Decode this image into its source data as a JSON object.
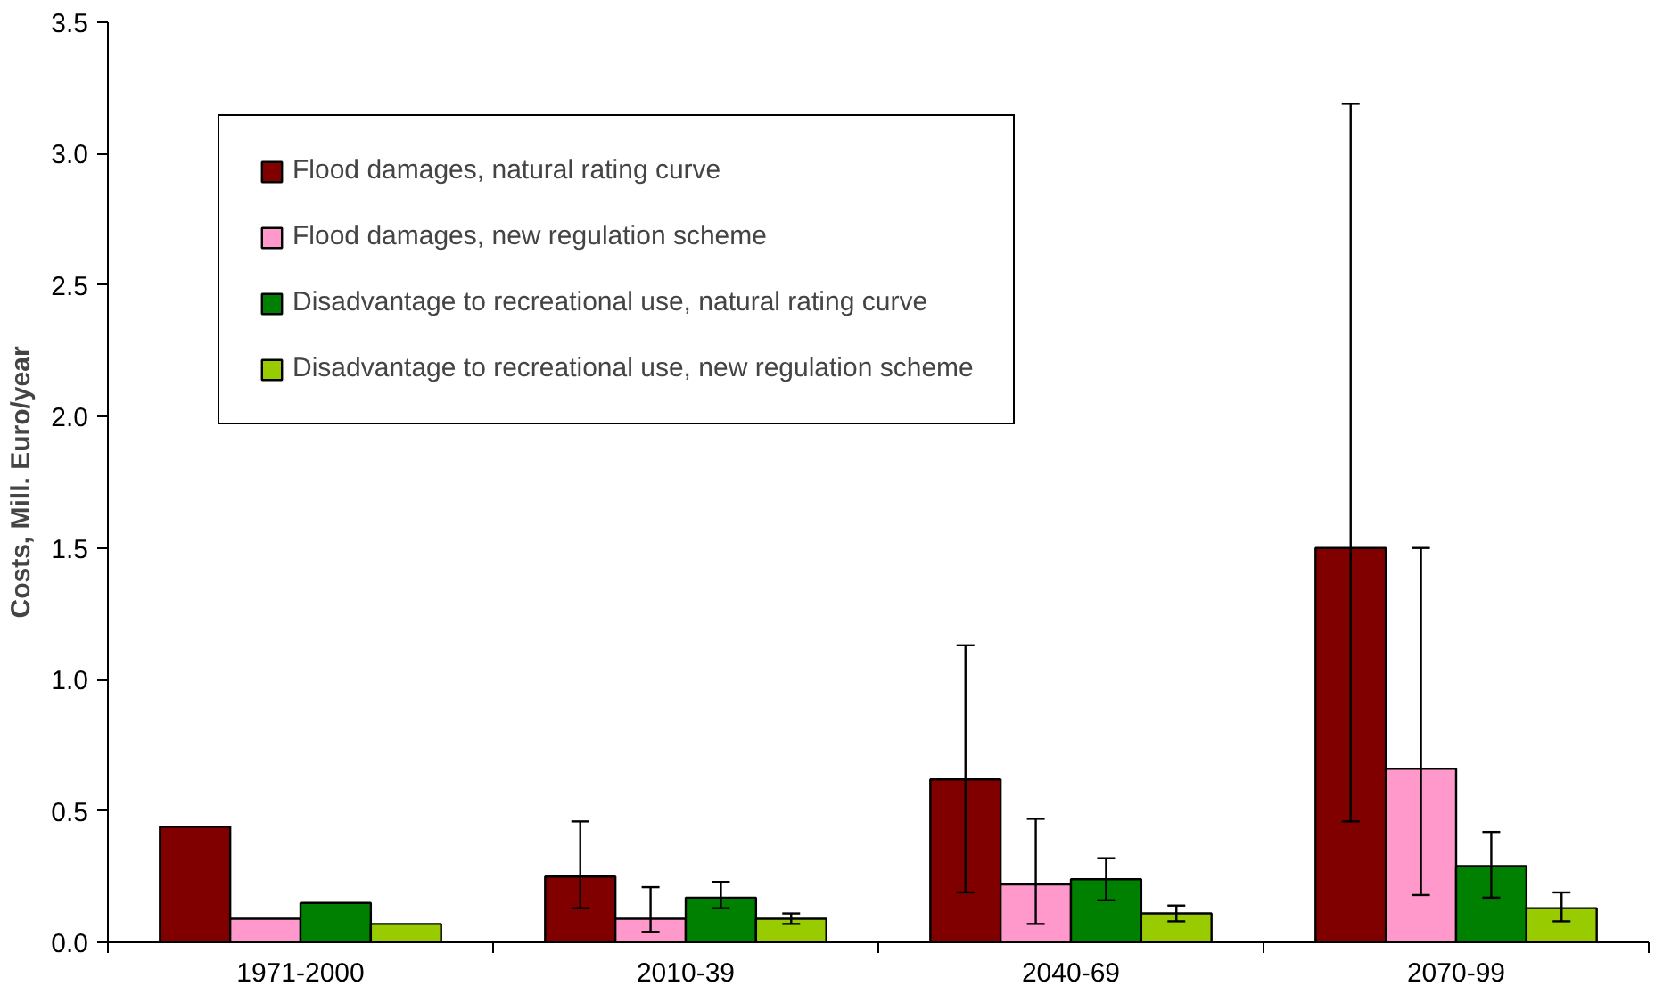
{
  "chart_data": {
    "type": "bar",
    "ylabel": "Costs, Mill. Euro/year",
    "categories": [
      "1971-2000",
      "2010-39",
      "2040-69",
      "2070-99"
    ],
    "series": [
      {
        "name": "Flood damages, natural rating curve",
        "color": "#800000",
        "values": [
          0.44,
          0.25,
          0.62,
          1.5
        ],
        "errors": [
          null,
          [
            0.13,
            0.46
          ],
          [
            0.19,
            1.13
          ],
          [
            0.46,
            3.19
          ]
        ]
      },
      {
        "name": "Flood damages, new regulation scheme",
        "color": "#ff99cc",
        "values": [
          0.09,
          0.09,
          0.22,
          0.66
        ],
        "errors": [
          null,
          [
            0.04,
            0.21
          ],
          [
            0.07,
            0.47
          ],
          [
            0.18,
            1.5
          ]
        ]
      },
      {
        "name": "Disadvantage to recreational use, natural rating curve",
        "color": "#008000",
        "values": [
          0.15,
          0.17,
          0.24,
          0.29
        ],
        "errors": [
          null,
          [
            0.13,
            0.23
          ],
          [
            0.16,
            0.32
          ],
          [
            0.17,
            0.42
          ]
        ]
      },
      {
        "name": "Disadvantage to recreational use, new regulation scheme",
        "color": "#99cc00",
        "values": [
          0.07,
          0.09,
          0.11,
          0.13
        ],
        "errors": [
          null,
          [
            0.07,
            0.11
          ],
          [
            0.08,
            0.14
          ],
          [
            0.08,
            0.19
          ]
        ]
      }
    ],
    "ylim": [
      0,
      3.5
    ],
    "yticks": [
      {
        "value": 0,
        "label": "0.0"
      },
      0.5,
      {
        "value": 1,
        "label": "1.0"
      },
      1.5,
      {
        "value": 2,
        "label": "2.0"
      },
      2.5,
      {
        "value": 3,
        "label": "3.0"
      },
      3.5
    ],
    "grid": false,
    "legend": "top left"
  }
}
